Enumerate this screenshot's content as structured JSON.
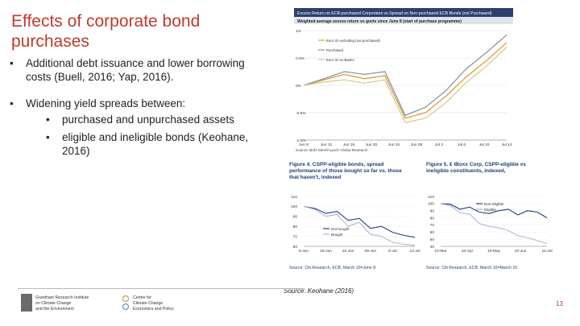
{
  "slide": {
    "title": "Effects of corporate bond purchases",
    "bullets": [
      {
        "marker": "•",
        "text": "Additional debt issuance and lower borrowing costs (Buell, 2016; Yap, 2016)."
      },
      {
        "marker": "•",
        "text": "Widening yield spreads between:",
        "sub": [
          {
            "marker": "•",
            "text": "purchased and unpurchased assets"
          },
          {
            "marker": "•",
            "text": "eligible and ineligible bonds (Keohane, 2016)"
          }
        ]
      }
    ],
    "source": "Source: Keohane (2016)",
    "page_number": "13"
  },
  "logos": {
    "grantham": [
      "Grantham Research Institute",
      "on Climate Change",
      "and the Environment"
    ],
    "cccep": [
      "Centre for",
      "Climate Change",
      "Economics and Policy"
    ]
  },
  "colors": {
    "title_red": "#c0392b",
    "chart_header": "#2e3f6e",
    "chart_blue": "#1f3d7a"
  },
  "chart_data": [
    {
      "type": "line",
      "title": "Excess Return on ECB-purchased Corporates vs Spread on Non-purchased ECB Bonds (not Purchased)",
      "subtitle": "Weighted average excess return vs govts since June 8 (start of purchase programme)",
      "x_ticks": [
        "Jun 8",
        "Jun 12",
        "Jun 16",
        "Jun 20",
        "Jun 24",
        "Jun 28",
        "Jul 2",
        "Jul 6",
        "Jul 10",
        "Jul 14"
      ],
      "y_ticks": [
        "1%",
        "0.5%",
        "0%",
        "-0.5%",
        "-1.0%"
      ],
      "ylim": [
        -1.0,
        1.0
      ],
      "legend": [
        "Euro IG excluding (not purchased)",
        "Purchased",
        "Euro IG ex-Banks"
      ],
      "note": "Source: BofA Merrill Lynch Global Research",
      "series": [
        {
          "name": "Euro IG excluding (not purchased)",
          "values": [
            0.0,
            0.1,
            0.2,
            0.12,
            0.18,
            -0.6,
            -0.5,
            -0.2,
            0.15,
            0.45,
            0.78
          ]
        },
        {
          "name": "Purchased",
          "values": [
            0.0,
            0.12,
            0.25,
            0.2,
            0.25,
            -0.55,
            -0.4,
            -0.1,
            0.3,
            0.6,
            0.92
          ]
        },
        {
          "name": "Euro IG ex-Banks",
          "values": [
            0.0,
            0.06,
            0.1,
            0.04,
            0.1,
            -0.68,
            -0.6,
            -0.32,
            0.05,
            0.35,
            0.7
          ]
        }
      ]
    },
    {
      "type": "line",
      "title": "Figure 4. CSPP-eligible bonds, spread performance of those bought so far vs. those that haven't, indexed",
      "x_ticks": [
        "8-Jun",
        "15-Jun",
        "22-Jun",
        "29-Jun",
        "6-Jul",
        "13-Jul"
      ],
      "y_ticks": [
        "110",
        "100",
        "90",
        "80",
        "70",
        "60"
      ],
      "ylim": [
        60,
        110
      ],
      "legend": [
        "Not bought",
        "Bought"
      ],
      "note": "Source: Citi Research, ECB, March 10=June 8",
      "series": [
        {
          "name": "Not bought",
          "values": [
            100,
            98,
            93,
            95,
            86,
            88,
            78,
            80,
            74,
            71,
            69
          ]
        },
        {
          "name": "Bought",
          "values": [
            100,
            97,
            90,
            92,
            80,
            84,
            72,
            70,
            64,
            62,
            61
          ]
        }
      ]
    },
    {
      "type": "line",
      "title": "Figure 5. € iBoxx Corp, CSPP-eligible vs ineligible constituents, indexed",
      "x_ticks": [
        "10-Mar",
        "10-Apr",
        "10-May",
        "10-Jun",
        "10-Jul"
      ],
      "y_ticks": [
        "110",
        "100",
        "90",
        "80",
        "70",
        "60",
        "50",
        "40"
      ],
      "ylim": [
        40,
        110
      ],
      "legend": [
        "Non-eligible",
        "Eligible"
      ],
      "note": "Source: Citi Research, ECB, March 10=March 10",
      "series": [
        {
          "name": "Non-eligible",
          "values": [
            100,
            99,
            92,
            95,
            88,
            86,
            90,
            92,
            84,
            90,
            88,
            80
          ]
        },
        {
          "name": "Eligible",
          "values": [
            100,
            97,
            87,
            85,
            72,
            68,
            66,
            62,
            55,
            52,
            48,
            44
          ]
        }
      ]
    }
  ]
}
